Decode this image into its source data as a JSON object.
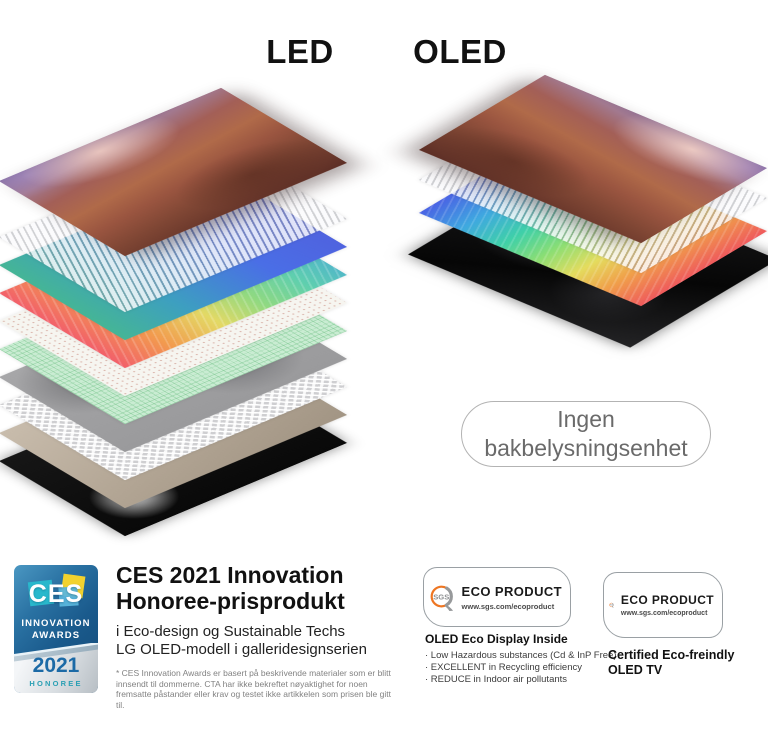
{
  "colors": {
    "sgs-orange": "#ee7623",
    "sgs-gray": "#97999b",
    "ces-blue": "#1a5a8c",
    "ces-teal": "#29b8cc",
    "ces-yellow": "#f2d22e",
    "ces-lightblue": "#5bb7dd",
    "year-blue": "#1c6aa6",
    "honoree-teal": "#2ba0b4",
    "callout-text": "#6a6a6a",
    "callout-border": "#b3b3b3"
  },
  "headings": {
    "led": "LED",
    "oled": "OLED"
  },
  "stacks": {
    "led": {
      "layers": [
        {
          "name": "photo-layer",
          "style": "photo-led"
        },
        {
          "name": "striped-film-layer",
          "style": "striped"
        },
        {
          "name": "blue-sheet-layer",
          "style": "blue-sheet"
        },
        {
          "name": "rainbow-sheet-layer",
          "style": "rainbow-led"
        },
        {
          "name": "dotted-diffuser-layer",
          "style": "dotted"
        },
        {
          "name": "green-grid-layer",
          "style": "green-grid"
        },
        {
          "name": "gray-sheet-layer",
          "style": "gray-marble"
        },
        {
          "name": "mesh-lattice-layer",
          "style": "mesh"
        },
        {
          "name": "beige-sheet-layer",
          "style": "beige"
        },
        {
          "name": "black-backlight-layer",
          "style": "black-glow"
        }
      ]
    },
    "oled": {
      "layers": [
        {
          "name": "photo-layer",
          "style": "photo-oled"
        },
        {
          "name": "striped-film-layer",
          "style": "striped"
        },
        {
          "name": "rainbow-sheet-layer",
          "style": "rainbow-oled"
        },
        {
          "name": "black-panel-layer",
          "style": "black-panel"
        }
      ]
    }
  },
  "callout": {
    "text": "Ingen bakbelysningsenhet"
  },
  "ces": {
    "badge": {
      "logo_word": "CES",
      "line1": "INNOVATION",
      "line2": "AWARDS",
      "year": "2021",
      "honoree": "HONOREE"
    },
    "title_line1": "CES 2021 Innovation",
    "title_line2": "Honoree-prisprodukt",
    "subtitle_line1": "i Eco-design og Sustainable Techs",
    "subtitle_line2": "LG OLED-modell i galleridesignserien",
    "disclaimer": "* CES Innovation Awards er basert på beskrivende materialer som er blitt innsendt til dommerne. CTA har ikke bekreftet nøyaktighet for noen fremsatte påstander eller krav og testet ikke artikkelen som prisen ble gitt til."
  },
  "sgs_display": {
    "logo_word": "SGS",
    "badge_title": "ECO PRODUCT",
    "badge_url": "www.sgs.com/ecoproduct",
    "title": "OLED Eco Display Inside",
    "bullets": [
      "· Low Hazardous substances (Cd & InP Free)",
      "· EXCELLENT in Recycling efficiency",
      "· REDUCE in Indoor air pollutants"
    ]
  },
  "sgs_tv": {
    "logo_word": "SGS",
    "badge_title": "ECO PRODUCT",
    "badge_url": "www.sgs.com/ecoproduct",
    "title_line1": "Certified Eco-freindly",
    "title_line2": "OLED TV"
  }
}
